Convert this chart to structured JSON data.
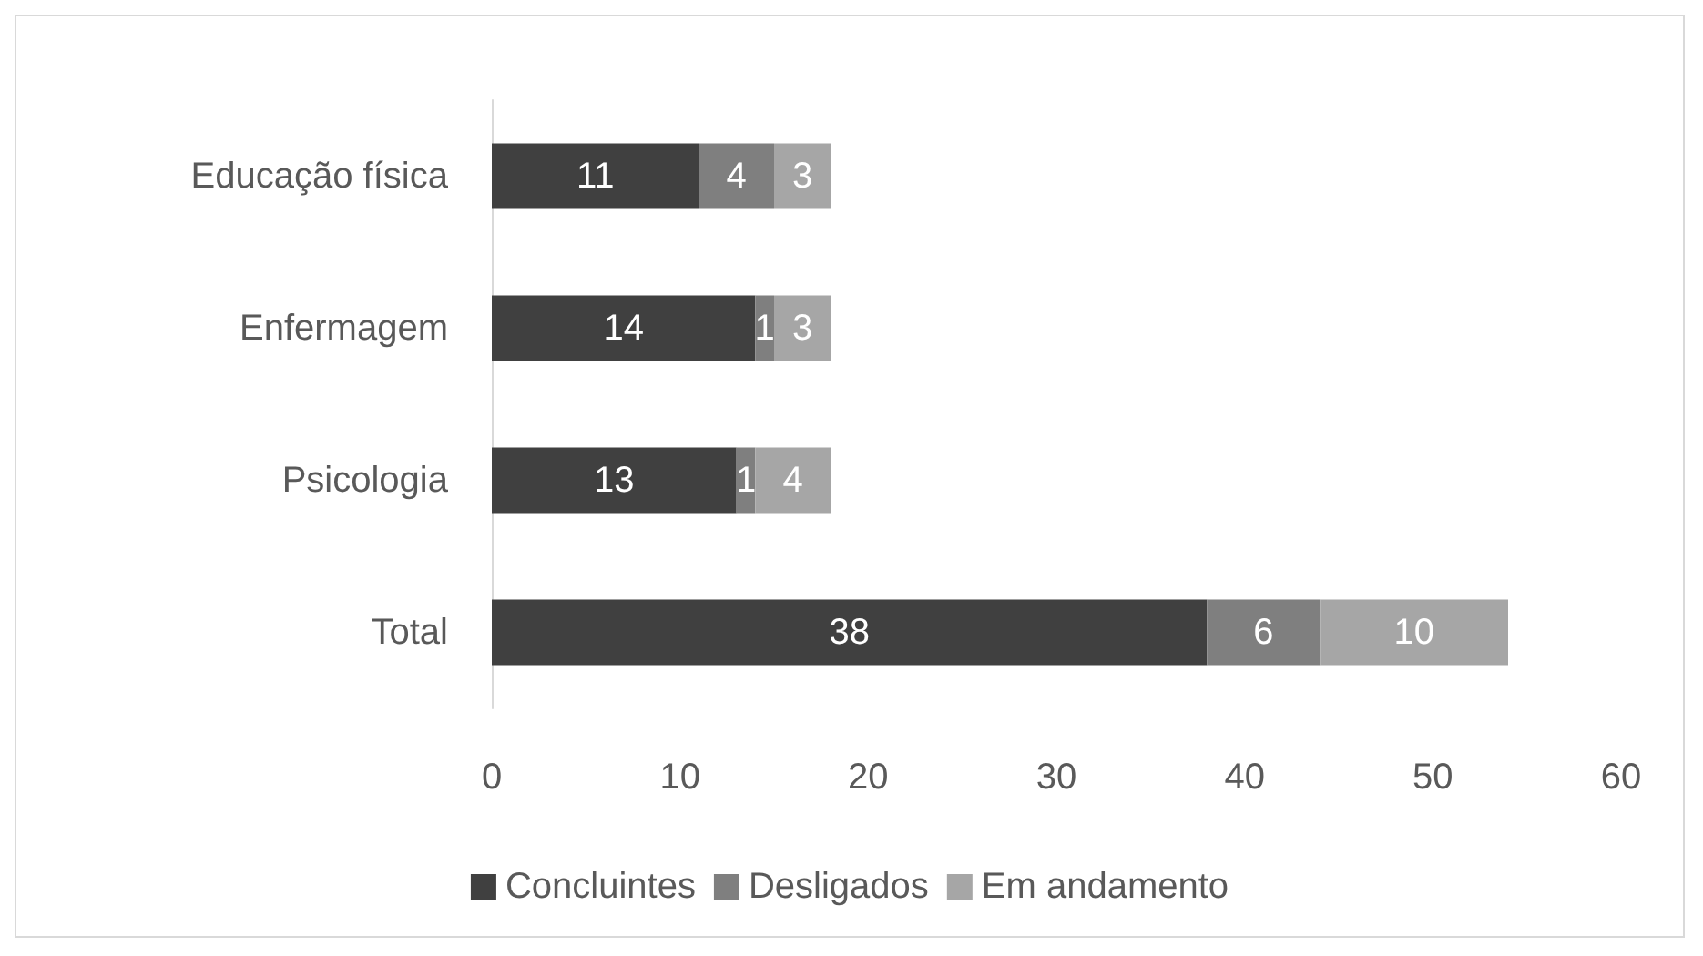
{
  "chart_data": {
    "type": "bar",
    "orientation": "horizontal",
    "stacked": true,
    "categories": [
      "Educação física",
      "Enfermagem",
      "Psicologia",
      "Total"
    ],
    "series": [
      {
        "name": "Concluintes",
        "color": "#404040",
        "values": [
          11,
          14,
          13,
          38
        ]
      },
      {
        "name": "Desligados",
        "color": "#7f7f7f",
        "values": [
          4,
          1,
          1,
          6
        ]
      },
      {
        "name": "Em andamento",
        "color": "#a6a6a6",
        "values": [
          3,
          3,
          4,
          10
        ]
      }
    ],
    "xlim": [
      0,
      60
    ],
    "xticks": [
      0,
      10,
      20,
      30,
      40,
      50,
      60
    ],
    "grid": false,
    "legend": "bottom",
    "data_labels": true
  }
}
